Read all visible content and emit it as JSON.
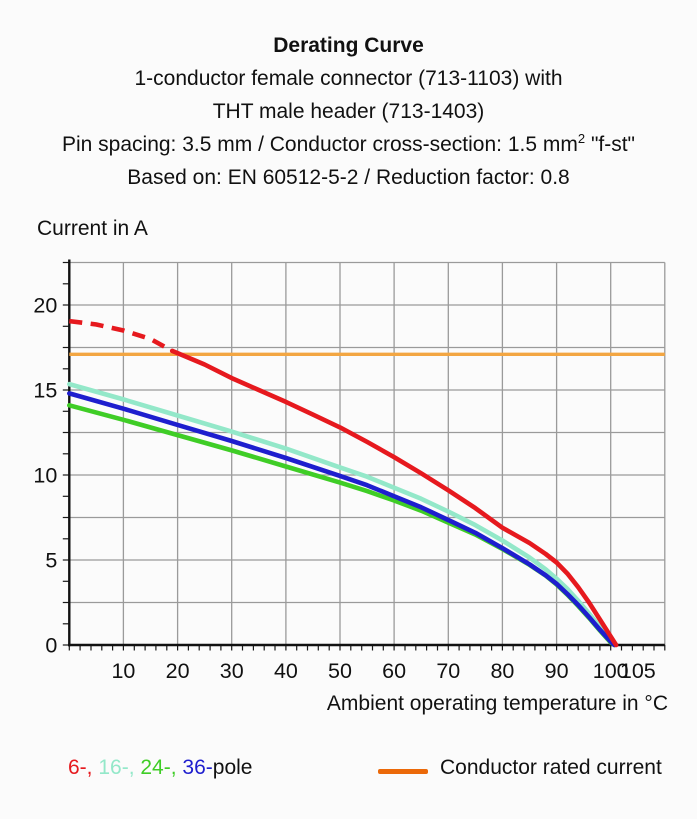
{
  "header": {
    "title": "Derating Curve",
    "subtitle_lines": [
      "1-conductor female connector (713-1103) with",
      "THT male header (713-1403)"
    ],
    "spec_line": {
      "pre": "Pin spacing: 3.5 mm / Conductor cross-section: 1.5 mm",
      "sup": "2",
      "post": " \"f-st\""
    },
    "basis_line": "Based on: EN 60512-5-2 / Reduction factor: 0.8"
  },
  "chart_data": {
    "type": "line",
    "title": "Derating Curve",
    "ylabel": "Current in A",
    "xlabel": "Ambient operating temperature in °C",
    "xlim": [
      0,
      110
    ],
    "ylim": [
      0,
      22.5
    ],
    "x_tick_labels": [
      10,
      20,
      30,
      40,
      50,
      60,
      70,
      80,
      90,
      100,
      105
    ],
    "y_tick_labels": [
      0,
      5,
      10,
      15,
      20
    ],
    "x_grid_step": 10,
    "y_grid_step": 2.5,
    "x_minor_tick_step": 2,
    "y_minor_tick_step": 1.25,
    "grid": true,
    "grid_color": "#9A9A9A",
    "series": [
      {
        "name": "Conductor rated current",
        "type": "hline",
        "value": 17.1,
        "color": "#F3A642"
      },
      {
        "name": "16-pole",
        "color": "#93E8C9",
        "points": [
          [
            0,
            15.35
          ],
          [
            10,
            14.45
          ],
          [
            20,
            13.5
          ],
          [
            30,
            12.55
          ],
          [
            40,
            11.55
          ],
          [
            50,
            10.45
          ],
          [
            55,
            9.9
          ],
          [
            60,
            9.25
          ],
          [
            65,
            8.6
          ],
          [
            70,
            7.85
          ],
          [
            75,
            7.05
          ],
          [
            80,
            6.15
          ],
          [
            85,
            5.15
          ],
          [
            88,
            4.45
          ],
          [
            90,
            3.9
          ],
          [
            92,
            3.3
          ],
          [
            94,
            2.6
          ],
          [
            96,
            1.85
          ],
          [
            98,
            1.05
          ],
          [
            100,
            0.25
          ],
          [
            100.7,
            0
          ]
        ]
      },
      {
        "name": "24-pole",
        "color": "#3FCD26",
        "points": [
          [
            0,
            14.1
          ],
          [
            10,
            13.25
          ],
          [
            20,
            12.35
          ],
          [
            30,
            11.45
          ],
          [
            40,
            10.5
          ],
          [
            50,
            9.55
          ],
          [
            55,
            9.05
          ],
          [
            60,
            8.5
          ],
          [
            65,
            7.9
          ],
          [
            70,
            7.2
          ],
          [
            75,
            6.5
          ],
          [
            80,
            5.65
          ],
          [
            85,
            4.72
          ],
          [
            88,
            4.08
          ],
          [
            90,
            3.56
          ],
          [
            92,
            2.96
          ],
          [
            94,
            2.3
          ],
          [
            96,
            1.6
          ],
          [
            98,
            0.85
          ],
          [
            100,
            0.15
          ],
          [
            100.7,
            0
          ]
        ]
      },
      {
        "name": "36-pole",
        "color": "#1E1ECE",
        "points": [
          [
            0,
            14.8
          ],
          [
            10,
            13.9
          ],
          [
            20,
            12.95
          ],
          [
            30,
            12.0
          ],
          [
            40,
            11.0
          ],
          [
            50,
            9.95
          ],
          [
            55,
            9.4
          ],
          [
            60,
            8.75
          ],
          [
            65,
            8.1
          ],
          [
            70,
            7.35
          ],
          [
            75,
            6.6
          ],
          [
            80,
            5.7
          ],
          [
            85,
            4.75
          ],
          [
            88,
            4.1
          ],
          [
            90,
            3.6
          ],
          [
            92,
            3.0
          ],
          [
            94,
            2.35
          ],
          [
            96,
            1.65
          ],
          [
            98,
            0.9
          ],
          [
            100,
            0.2
          ],
          [
            100.7,
            0
          ]
        ]
      },
      {
        "name": "6-pole",
        "color": "#E6191E",
        "dashed_points": [
          [
            0,
            19.05
          ],
          [
            5,
            18.85
          ],
          [
            10,
            18.5
          ],
          [
            15,
            18.0
          ],
          [
            19,
            17.3
          ]
        ],
        "points": [
          [
            19,
            17.3
          ],
          [
            25,
            16.5
          ],
          [
            30,
            15.7
          ],
          [
            35,
            15.0
          ],
          [
            40,
            14.3
          ],
          [
            45,
            13.55
          ],
          [
            50,
            12.8
          ],
          [
            55,
            11.95
          ],
          [
            60,
            11.05
          ],
          [
            65,
            10.1
          ],
          [
            70,
            9.1
          ],
          [
            75,
            8.05
          ],
          [
            80,
            6.9
          ],
          [
            85,
            6.0
          ],
          [
            88,
            5.35
          ],
          [
            90,
            4.85
          ],
          [
            92,
            4.2
          ],
          [
            94,
            3.4
          ],
          [
            96,
            2.5
          ],
          [
            98,
            1.5
          ],
          [
            100,
            0.5
          ],
          [
            101,
            0
          ]
        ]
      }
    ]
  },
  "legend": {
    "pole_items": [
      {
        "label": "6-, ",
        "color": "#E6191E"
      },
      {
        "label": "16-, ",
        "color": "#93E8C9"
      },
      {
        "label": "24-, ",
        "color": "#3FCD26"
      },
      {
        "label": "36-",
        "color": "#1E1ECE"
      }
    ],
    "pole_suffix": "pole",
    "rated_label": "Conductor rated current",
    "rated_swatch_color": "#EB6909"
  }
}
